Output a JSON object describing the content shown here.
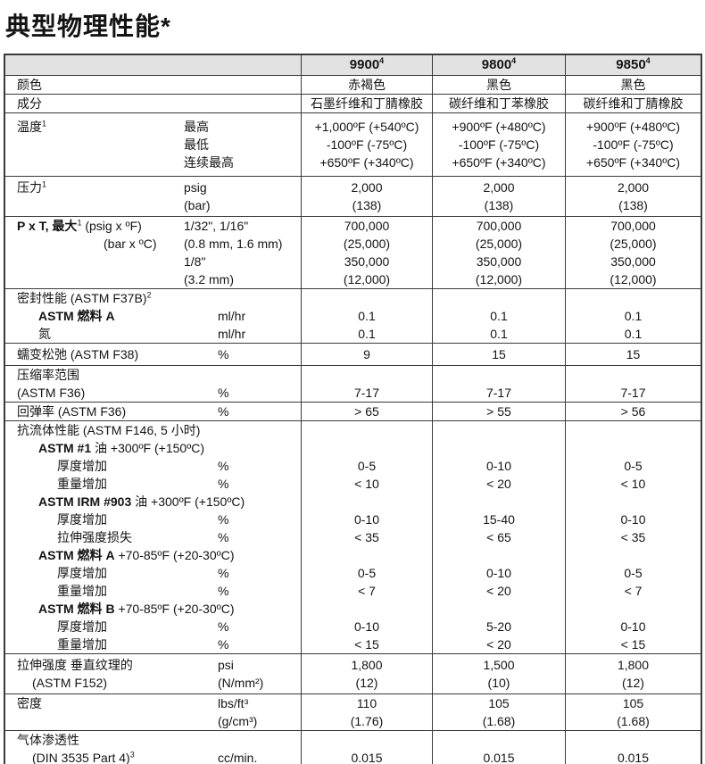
{
  "page": {
    "title": "典型物理性能*"
  },
  "colors": {
    "header_bg": "#e2e2e2",
    "border": "#3a3a3a",
    "text": "#141414"
  },
  "table": {
    "columns": [
      "9900",
      "9800",
      "9850"
    ],
    "column_sup": "4",
    "groups": [
      {
        "lines": [
          {
            "label": [
              {
                "t": "颜色"
              }
            ],
            "values": [
              "赤褐色",
              "黑色",
              "黑色"
            ]
          }
        ]
      },
      {
        "lines": [
          {
            "label": [
              {
                "t": "成分"
              }
            ],
            "values": [
              "石墨纤维和丁腈橡胶",
              "碳纤维和丁苯橡胶",
              "碳纤维和丁腈橡胶"
            ]
          }
        ]
      },
      {
        "pad": "a",
        "lines": [
          {
            "label": [
              {
                "t": "温度"
              },
              {
                "sup": "1"
              }
            ],
            "unit": "最高",
            "up": "a",
            "values": [
              "+1,000ºF (+540ºC)",
              "+900ºF (+480ºC)",
              "+900ºF (+480ºC)"
            ]
          },
          {
            "unit": "最低",
            "up": "a",
            "values": [
              "-100ºF (-75ºC)",
              "-100ºF (-75ºC)",
              "-100ºF (-75ºC)"
            ]
          },
          {
            "unit": "连续最高",
            "up": "a",
            "values": [
              "+650ºF (+340ºC)",
              "+650ºF (+340ºC)",
              "+650ºF (+340ºC)"
            ]
          }
        ]
      },
      {
        "pad": "b",
        "lines": [
          {
            "label": [
              {
                "t": "压力"
              },
              {
                "sup": "1"
              }
            ],
            "unit": "psig",
            "up": "a",
            "values": [
              "2,000",
              "2,000",
              "2,000"
            ]
          },
          {
            "unit": "(bar)",
            "up": "a",
            "values": [
              "(138)",
              "(138)",
              "(138)"
            ]
          }
        ]
      },
      {
        "lines": [
          {
            "label": [
              {
                "t": "P x T, 最大",
                "b": true
              },
              {
                "sup": "1"
              },
              {
                "t": " (psig x ºF)"
              }
            ],
            "unit": "1/32\", 1/16\"",
            "up": "a",
            "values": [
              "700,000",
              "700,000",
              "700,000"
            ]
          },
          {
            "label": [
              {
                "t": "(bar x ºC)"
              }
            ],
            "ind": 4,
            "unit": "(0.8 mm, 1.6 mm)",
            "up": "a",
            "values": [
              "(25,000)",
              "(25,000)",
              "(25,000)"
            ]
          },
          {
            "unit": "1/8\"",
            "up": "a",
            "values": [
              "350,000",
              "350,000",
              "350,000"
            ]
          },
          {
            "unit": "(3.2 mm)",
            "up": "a",
            "values": [
              "(12,000)",
              "(12,000)",
              "(12,000)"
            ]
          }
        ]
      },
      {
        "lines": [
          {
            "label": [
              {
                "t": "密封性能 (ASTM F37B)"
              },
              {
                "sup": "2"
              }
            ]
          },
          {
            "label": [
              {
                "t": "ASTM 燃料 A",
                "b": true
              }
            ],
            "ind": 2,
            "unit": "ml/hr",
            "values": [
              "0.1",
              "0.1",
              "0.1"
            ]
          },
          {
            "label": [
              {
                "t": "氮"
              }
            ],
            "ind": 2,
            "unit": "ml/hr",
            "values": [
              "0.1",
              "0.1",
              "0.1"
            ]
          }
        ]
      },
      {
        "pad": "b",
        "lines": [
          {
            "label": [
              {
                "t": "蠕变松弛 (ASTM F38)"
              }
            ],
            "unit": "%",
            "values": [
              "9",
              "15",
              "15"
            ]
          }
        ]
      },
      {
        "lines": [
          {
            "label": [
              {
                "t": "压缩率范围"
              }
            ]
          },
          {
            "label": [
              {
                "t": "(ASTM F36)"
              }
            ],
            "unit": "%",
            "values": [
              "7-17",
              "7-17",
              "7-17"
            ]
          }
        ]
      },
      {
        "lines": [
          {
            "label": [
              {
                "t": "回弹率 (ASTM F36)"
              }
            ],
            "unit": "%",
            "values": [
              "> 65",
              "> 55",
              "> 56"
            ]
          }
        ]
      },
      {
        "lines": [
          {
            "label": [
              {
                "t": "抗流体性能 (ASTM F146, 5 小时)"
              }
            ]
          },
          {
            "label": [
              {
                "t": "ASTM #1",
                "b": true
              },
              {
                "t": " 油 +300ºF (+150ºC)"
              }
            ],
            "ind": 2
          },
          {
            "label": [
              {
                "t": "厚度增加"
              }
            ],
            "ind": 3,
            "unit": "%",
            "values": [
              "0-5",
              "0-10",
              "0-5"
            ]
          },
          {
            "label": [
              {
                "t": "重量增加"
              }
            ],
            "ind": 3,
            "unit": "%",
            "values": [
              "< 10",
              "< 20",
              "< 10"
            ]
          },
          {
            "label": [
              {
                "t": "ASTM IRM #903",
                "b": true
              },
              {
                "t": " 油 +300ºF (+150ºC)"
              }
            ],
            "ind": 2
          },
          {
            "label": [
              {
                "t": "厚度增加"
              }
            ],
            "ind": 3,
            "unit": "%",
            "values": [
              "0-10",
              "15-40",
              "0-10"
            ]
          },
          {
            "label": [
              {
                "t": "拉伸强度损失"
              }
            ],
            "ind": 3,
            "unit": "%",
            "values": [
              "< 35",
              "< 65",
              "< 35"
            ]
          },
          {
            "label": [
              {
                "t": "ASTM 燃料 A",
                "b": true
              },
              {
                "t": " +70-85ºF (+20-30ºC)"
              }
            ],
            "ind": 2
          },
          {
            "label": [
              {
                "t": "厚度增加"
              }
            ],
            "ind": 3,
            "unit": "%",
            "values": [
              "0-5",
              "0-10",
              "0-5"
            ]
          },
          {
            "label": [
              {
                "t": "重量增加"
              }
            ],
            "ind": 3,
            "unit": "%",
            "values": [
              "< 7",
              "< 20",
              "< 7"
            ]
          },
          {
            "label": [
              {
                "t": "ASTM 燃料 B",
                "b": true
              },
              {
                "t": " +70-85ºF (+20-30ºC)"
              }
            ],
            "ind": 2
          },
          {
            "label": [
              {
                "t": "厚度增加"
              }
            ],
            "ind": 3,
            "unit": "%",
            "values": [
              "0-10",
              "5-20",
              "0-10"
            ]
          },
          {
            "label": [
              {
                "t": "重量增加"
              }
            ],
            "ind": 3,
            "unit": "%",
            "values": [
              "< 15",
              "< 20",
              "< 15"
            ]
          }
        ]
      },
      {
        "pad": "b",
        "lines": [
          {
            "label": [
              {
                "t": "拉伸强度 垂直纹理的"
              }
            ],
            "unit": "psi",
            "values": [
              "1,800",
              "1,500",
              "1,800"
            ]
          },
          {
            "label": [
              {
                "t": "(ASTM F152)"
              }
            ],
            "ind": 1,
            "unit": "(N/mm²)",
            "values": [
              "(12)",
              "(10)",
              "(12)"
            ]
          }
        ]
      },
      {
        "lines": [
          {
            "label": [
              {
                "t": "密度"
              }
            ],
            "unit": "lbs/ft³",
            "values": [
              "110",
              "105",
              "105"
            ]
          },
          {
            "unit": "(g/cm³)",
            "values": [
              "(1.76)",
              "(1.68)",
              "(1.68)"
            ]
          }
        ]
      },
      {
        "lines": [
          {
            "label": [
              {
                "t": "气体渗透性"
              }
            ]
          },
          {
            "label": [
              {
                "t": "(DIN 3535 Part 4)"
              },
              {
                "sup": "3"
              }
            ],
            "ind": 1,
            "unit": "cc/min.",
            "values": [
              "0.015",
              "0.015",
              "0.015"
            ]
          }
        ]
      }
    ]
  }
}
